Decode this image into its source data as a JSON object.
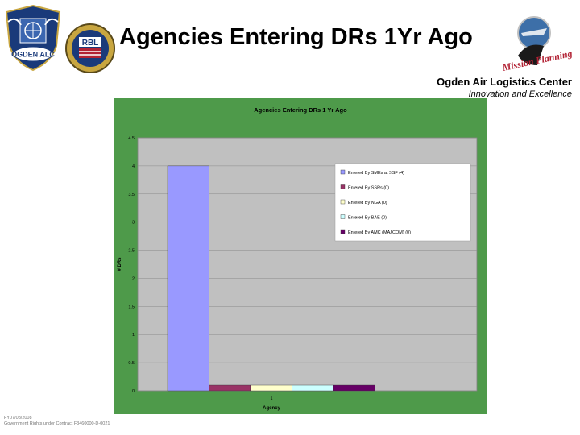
{
  "slide": {
    "title": "Agencies Entering DRs 1Yr Ago",
    "center_name": "Ogden Air Logistics Center",
    "tagline": "Innovation and Excellence",
    "footer_line1": "FY07/08/2008",
    "footer_line2": "Government Rights under Contract F3460000-D-0021"
  },
  "logos": {
    "left_logo_icon": "ogden-alc-shield-icon",
    "center_logo_icon": "rbl-seal-icon",
    "right_logo_icon": "mission-planning-icon",
    "left_logo_text": "OGDEN ALC",
    "center_logo_text": "RBL",
    "right_logo_text": "Mission Planning"
  },
  "chart_data": {
    "type": "bar",
    "title": "Agencies Entering DRs 1 Yr Ago",
    "xlabel": "Agency",
    "ylabel": "# DRs",
    "categories": [
      "1"
    ],
    "ylim": [
      0,
      4.5
    ],
    "yticks": [
      "0",
      "0.5",
      "1",
      "1.5",
      "2",
      "2.5",
      "3",
      "3.5",
      "4",
      "4.5"
    ],
    "grid": true,
    "legend_position": "right",
    "background_color": "#4e9a4a",
    "plot_area_color": "#c0c0c0",
    "series": [
      {
        "name": "Entered By SMEs at SSF (4)",
        "values": [
          4
        ],
        "color": "#9999ff"
      },
      {
        "name": "Entered By SSRs (0)",
        "values": [
          0
        ],
        "color": "#993366"
      },
      {
        "name": "Entered By NGA (0)",
        "values": [
          0
        ],
        "color": "#ffffcc"
      },
      {
        "name": "Entered By BAE (0)",
        "values": [
          0
        ],
        "color": "#ccffff"
      },
      {
        "name": "Entered By AMC (MAJCOM) (0)",
        "values": [
          0
        ],
        "color": "#660066"
      }
    ]
  }
}
